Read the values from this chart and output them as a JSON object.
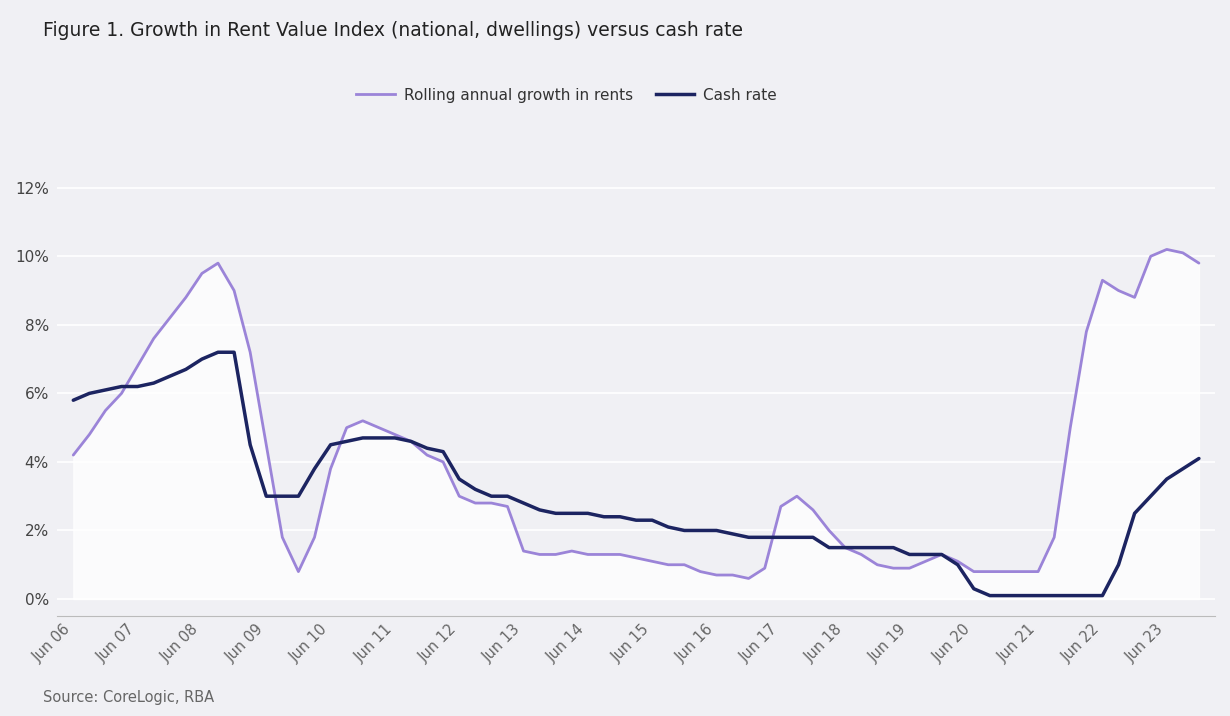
{
  "title": "Figure 1. Growth in Rent Value Index (national, dwellings) versus cash rate",
  "source": "Source: CoreLogic, RBA",
  "rent_color": "#9B84D8",
  "cash_color": "#1C2461",
  "background_color": "#F0F0F4",
  "fill_color": "#E8E8EE",
  "legend_rent": "Rolling annual growth in rents",
  "legend_cash": "Cash rate",
  "ylim": [
    -0.005,
    0.135
  ],
  "yticks": [
    0.0,
    0.02,
    0.04,
    0.06,
    0.08,
    0.1,
    0.12
  ],
  "rent_values": [
    0.042,
    0.048,
    0.055,
    0.06,
    0.068,
    0.076,
    0.082,
    0.088,
    0.095,
    0.098,
    0.09,
    0.072,
    0.045,
    0.018,
    0.008,
    0.018,
    0.038,
    0.05,
    0.052,
    0.05,
    0.048,
    0.046,
    0.042,
    0.04,
    0.03,
    0.028,
    0.028,
    0.027,
    0.014,
    0.013,
    0.013,
    0.014,
    0.013,
    0.013,
    0.013,
    0.012,
    0.011,
    0.01,
    0.01,
    0.008,
    0.007,
    0.007,
    0.006,
    0.009,
    0.027,
    0.03,
    0.026,
    0.02,
    0.015,
    0.013,
    0.01,
    0.009,
    0.009,
    0.011,
    0.013,
    0.011,
    0.008,
    0.008,
    0.008,
    0.008,
    0.008,
    0.018,
    0.05,
    0.078,
    0.093,
    0.09,
    0.088,
    0.1,
    0.102,
    0.101,
    0.098
  ],
  "cash_values": [
    0.058,
    0.06,
    0.061,
    0.062,
    0.062,
    0.063,
    0.065,
    0.067,
    0.07,
    0.072,
    0.072,
    0.045,
    0.03,
    0.03,
    0.03,
    0.038,
    0.045,
    0.046,
    0.047,
    0.047,
    0.047,
    0.046,
    0.044,
    0.043,
    0.035,
    0.032,
    0.03,
    0.03,
    0.028,
    0.026,
    0.025,
    0.025,
    0.025,
    0.024,
    0.024,
    0.023,
    0.023,
    0.021,
    0.02,
    0.02,
    0.02,
    0.019,
    0.018,
    0.018,
    0.018,
    0.018,
    0.018,
    0.015,
    0.015,
    0.015,
    0.015,
    0.015,
    0.013,
    0.013,
    0.013,
    0.01,
    0.003,
    0.001,
    0.001,
    0.001,
    0.001,
    0.001,
    0.001,
    0.001,
    0.001,
    0.01,
    0.025,
    0.03,
    0.035,
    0.038,
    0.041
  ],
  "xtick_labels": [
    "Jun 06",
    "Jun 07",
    "Jun 08",
    "Jun 09",
    "Jun 10",
    "Jun 11",
    "Jun 12",
    "Jun 13",
    "Jun 14",
    "Jun 15",
    "Jun 16",
    "Jun 17",
    "Jun 18",
    "Jun 19",
    "Jun 20",
    "Jun 21",
    "Jun 22",
    "Jun 23"
  ],
  "xtick_positions": [
    0,
    4,
    8,
    12,
    16,
    20,
    24,
    28,
    32,
    36,
    40,
    44,
    48,
    52,
    56,
    60,
    64,
    68
  ]
}
